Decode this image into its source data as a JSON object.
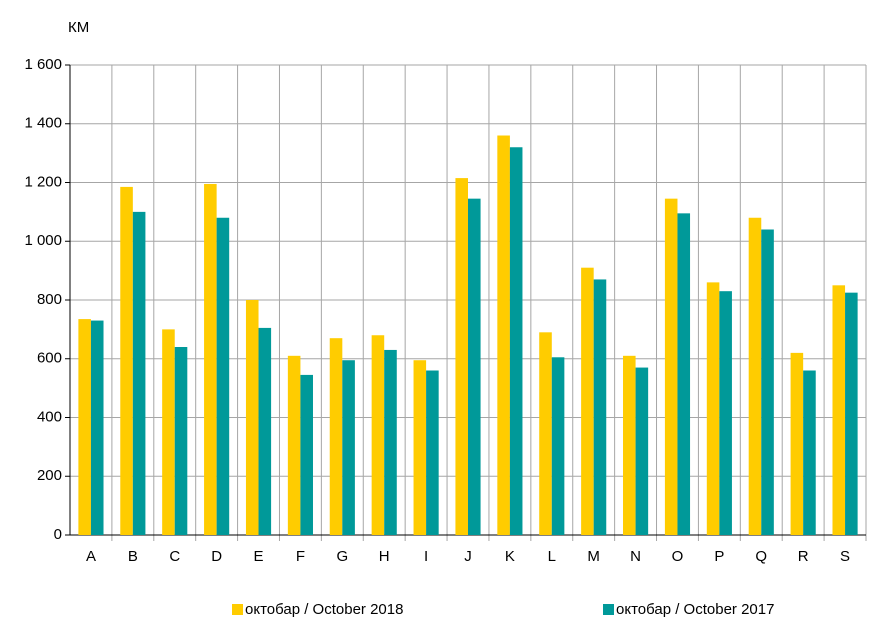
{
  "chart_data": {
    "type": "bar",
    "y_label": "КМ",
    "categories": [
      "A",
      "B",
      "C",
      "D",
      "E",
      "F",
      "G",
      "H",
      "I",
      "J",
      "K",
      "L",
      "M",
      "N",
      "O",
      "P",
      "Q",
      "R",
      "S"
    ],
    "series": [
      {
        "name": "октобар / October 2018",
        "color": "#ffcc00",
        "values": [
          735,
          1185,
          700,
          1195,
          800,
          610,
          670,
          680,
          595,
          1215,
          1360,
          690,
          910,
          610,
          1145,
          860,
          1080,
          620,
          850
        ]
      },
      {
        "name": "октобар / October 2017",
        "color": "#009999",
        "values": [
          730,
          1100,
          640,
          1080,
          705,
          545,
          595,
          630,
          560,
          1145,
          1320,
          605,
          870,
          570,
          1095,
          830,
          1040,
          560,
          825
        ]
      }
    ],
    "ylim": [
      0,
      1600
    ],
    "yticks": [
      0,
      200,
      400,
      600,
      800,
      {
        "value": 1000,
        "label": "1 000"
      },
      {
        "value": 1200,
        "label": "1 200"
      },
      {
        "value": 1400,
        "label": "1 400"
      },
      {
        "value": 1600,
        "label": "1 600"
      }
    ],
    "grid": true,
    "legend": "bottom"
  }
}
